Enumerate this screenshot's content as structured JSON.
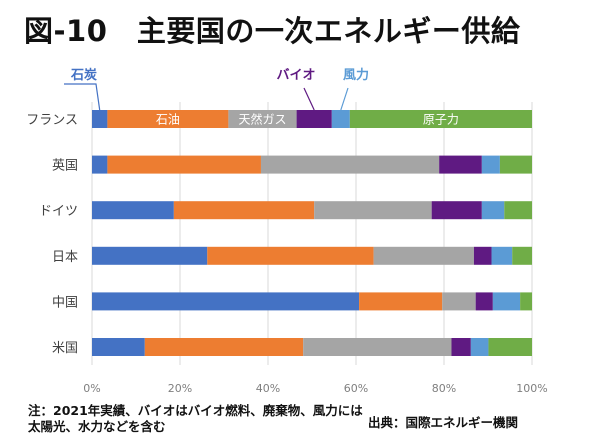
{
  "title": "図-10　主要国の一次エネルギー供給",
  "chart_data": {
    "type": "bar",
    "orientation": "horizontal",
    "stacked": "percent",
    "title": "図-10　主要国の一次エネルギー供給",
    "xlabel": "",
    "ylabel": "",
    "xlim": [
      0,
      100
    ],
    "x_ticks": [
      "0%",
      "20%",
      "40%",
      "60%",
      "80%",
      "100%"
    ],
    "grid": true,
    "categories": [
      "フランス",
      "英国",
      "ドイツ",
      "日本",
      "中国",
      "米国"
    ],
    "series": [
      {
        "name": "石炭",
        "color": "#4472c4",
        "values": [
          3.5,
          3.5,
          18.6,
          26.2,
          60.7,
          12.0
        ]
      },
      {
        "name": "石油",
        "color": "#ed7d31",
        "values": [
          27.5,
          34.9,
          31.9,
          37.8,
          18.9,
          36.0
        ]
      },
      {
        "name": "天然ガス",
        "color": "#a5a5a5",
        "values": [
          15.5,
          40.5,
          26.7,
          22.8,
          7.6,
          33.7
        ]
      },
      {
        "name": "バイオ",
        "color": "#5f1a82",
        "values": [
          8.0,
          9.7,
          11.4,
          4.0,
          3.9,
          4.4
        ]
      },
      {
        "name": "風力",
        "color": "#5b9bd5",
        "values": [
          4.1,
          4.1,
          5.1,
          4.7,
          6.2,
          4.0
        ]
      },
      {
        "name": "原子力",
        "color": "#70ad47",
        "values": [
          41.4,
          7.3,
          6.3,
          4.5,
          2.7,
          9.9
        ]
      }
    ],
    "legend": "inline labels on first bar (フランス) with callouts for 石炭, バイオ, 風力",
    "inline_labels": [
      "石油",
      "天然ガス",
      "原子力"
    ],
    "callouts": [
      {
        "label": "石炭",
        "color": "#4472c4"
      },
      {
        "label": "バイオ",
        "color": "#5f1a82"
      },
      {
        "label": "風力",
        "color": "#5b9bd5"
      }
    ]
  },
  "note": "注：2021年実績、バイオはバイオ燃料、廃棄物、風力には太陽光、水力などを含む",
  "source": "出典：国際エネルギー機関"
}
